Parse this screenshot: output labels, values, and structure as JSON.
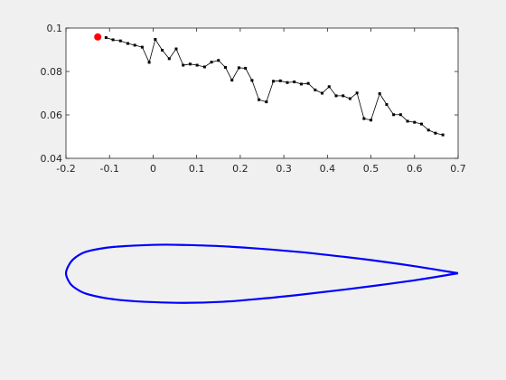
{
  "chart_data": [
    {
      "type": "line",
      "title": "",
      "xlabel": "",
      "ylabel": "",
      "xlim": [
        -0.2,
        0.7
      ],
      "ylim": [
        0.04,
        0.1
      ],
      "grid": false,
      "x_ticks": [
        "-0.2",
        "-0.1",
        "0",
        "0.1",
        "0.2",
        "0.3",
        "0.4",
        "0.5",
        "0.6",
        "0.7"
      ],
      "y_ticks": [
        "0.04",
        "0.06",
        "0.08",
        "0.1"
      ],
      "series": [
        {
          "color": "#000000",
          "marker": "square",
          "points": [
            [
              -0.108,
              0.0956
            ],
            [
              -0.092,
              0.0946
            ],
            [
              -0.075,
              0.0941
            ],
            [
              -0.058,
              0.0929
            ],
            [
              -0.042,
              0.0921
            ],
            [
              -0.025,
              0.0912
            ],
            [
              -0.009,
              0.0842
            ],
            [
              0.005,
              0.0948
            ],
            [
              0.021,
              0.0898
            ],
            [
              0.037,
              0.0859
            ],
            [
              0.053,
              0.0904
            ],
            [
              0.069,
              0.0829
            ],
            [
              0.085,
              0.0834
            ],
            [
              0.101,
              0.0829
            ],
            [
              0.118,
              0.0821
            ],
            [
              0.134,
              0.0843
            ],
            [
              0.15,
              0.0851
            ],
            [
              0.166,
              0.0819
            ],
            [
              0.181,
              0.076
            ],
            [
              0.197,
              0.0817
            ],
            [
              0.212,
              0.0815
            ],
            [
              0.227,
              0.0759
            ],
            [
              0.243,
              0.067
            ],
            [
              0.26,
              0.066
            ],
            [
              0.276,
              0.0755
            ],
            [
              0.292,
              0.0757
            ],
            [
              0.308,
              0.0749
            ],
            [
              0.324,
              0.0752
            ],
            [
              0.34,
              0.0742
            ],
            [
              0.356,
              0.0745
            ],
            [
              0.372,
              0.0715
            ],
            [
              0.388,
              0.07
            ],
            [
              0.404,
              0.073
            ],
            [
              0.42,
              0.0688
            ],
            [
              0.436,
              0.0688
            ],
            [
              0.452,
              0.0675
            ],
            [
              0.468,
              0.0701
            ],
            [
              0.484,
              0.0583
            ],
            [
              0.5,
              0.0576
            ],
            [
              0.52,
              0.0698
            ],
            [
              0.536,
              0.0648
            ],
            [
              0.552,
              0.0601
            ],
            [
              0.568,
              0.0601
            ],
            [
              0.584,
              0.0571
            ],
            [
              0.6,
              0.0566
            ],
            [
              0.616,
              0.0558
            ],
            [
              0.632,
              0.053
            ],
            [
              0.648,
              0.0516
            ],
            [
              0.665,
              0.0508
            ]
          ]
        },
        {
          "color": "#ff0000",
          "marker": "circle",
          "points": [
            [
              -0.127,
              0.0959
            ]
          ]
        }
      ]
    },
    {
      "type": "line",
      "title": "",
      "axes_visible": false,
      "xlim": [
        0,
        1
      ],
      "ylim": [
        -0.07,
        0.07
      ],
      "series": [
        {
          "color": "#0000ff",
          "upper_surface": [
            [
              1.0,
              0.0
            ],
            [
              0.9,
              0.012
            ],
            [
              0.8,
              0.0225
            ],
            [
              0.7,
              0.0315
            ],
            [
              0.6,
              0.0395
            ],
            [
              0.5,
              0.0457
            ],
            [
              0.4,
              0.0505
            ],
            [
              0.3,
              0.053
            ],
            [
              0.25,
              0.0535
            ],
            [
              0.2,
              0.0525
            ],
            [
              0.15,
              0.0508
            ],
            [
              0.1,
              0.0475
            ],
            [
              0.05,
              0.04
            ],
            [
              0.025,
              0.03
            ],
            [
              0.01,
              0.0185
            ],
            [
              0.0,
              0.0
            ]
          ],
          "lower_surface": [
            [
              0.0,
              0.0
            ],
            [
              0.01,
              -0.0185
            ],
            [
              0.025,
              -0.0285
            ],
            [
              0.05,
              -0.038
            ],
            [
              0.1,
              -0.0465
            ],
            [
              0.15,
              -0.051
            ],
            [
              0.2,
              -0.0535
            ],
            [
              0.3,
              -0.0555
            ],
            [
              0.4,
              -0.0535
            ],
            [
              0.5,
              -0.0475
            ],
            [
              0.6,
              -0.04
            ],
            [
              0.7,
              -0.0315
            ],
            [
              0.8,
              -0.0222
            ],
            [
              0.9,
              -0.012
            ],
            [
              1.0,
              0.0
            ]
          ]
        }
      ]
    }
  ]
}
